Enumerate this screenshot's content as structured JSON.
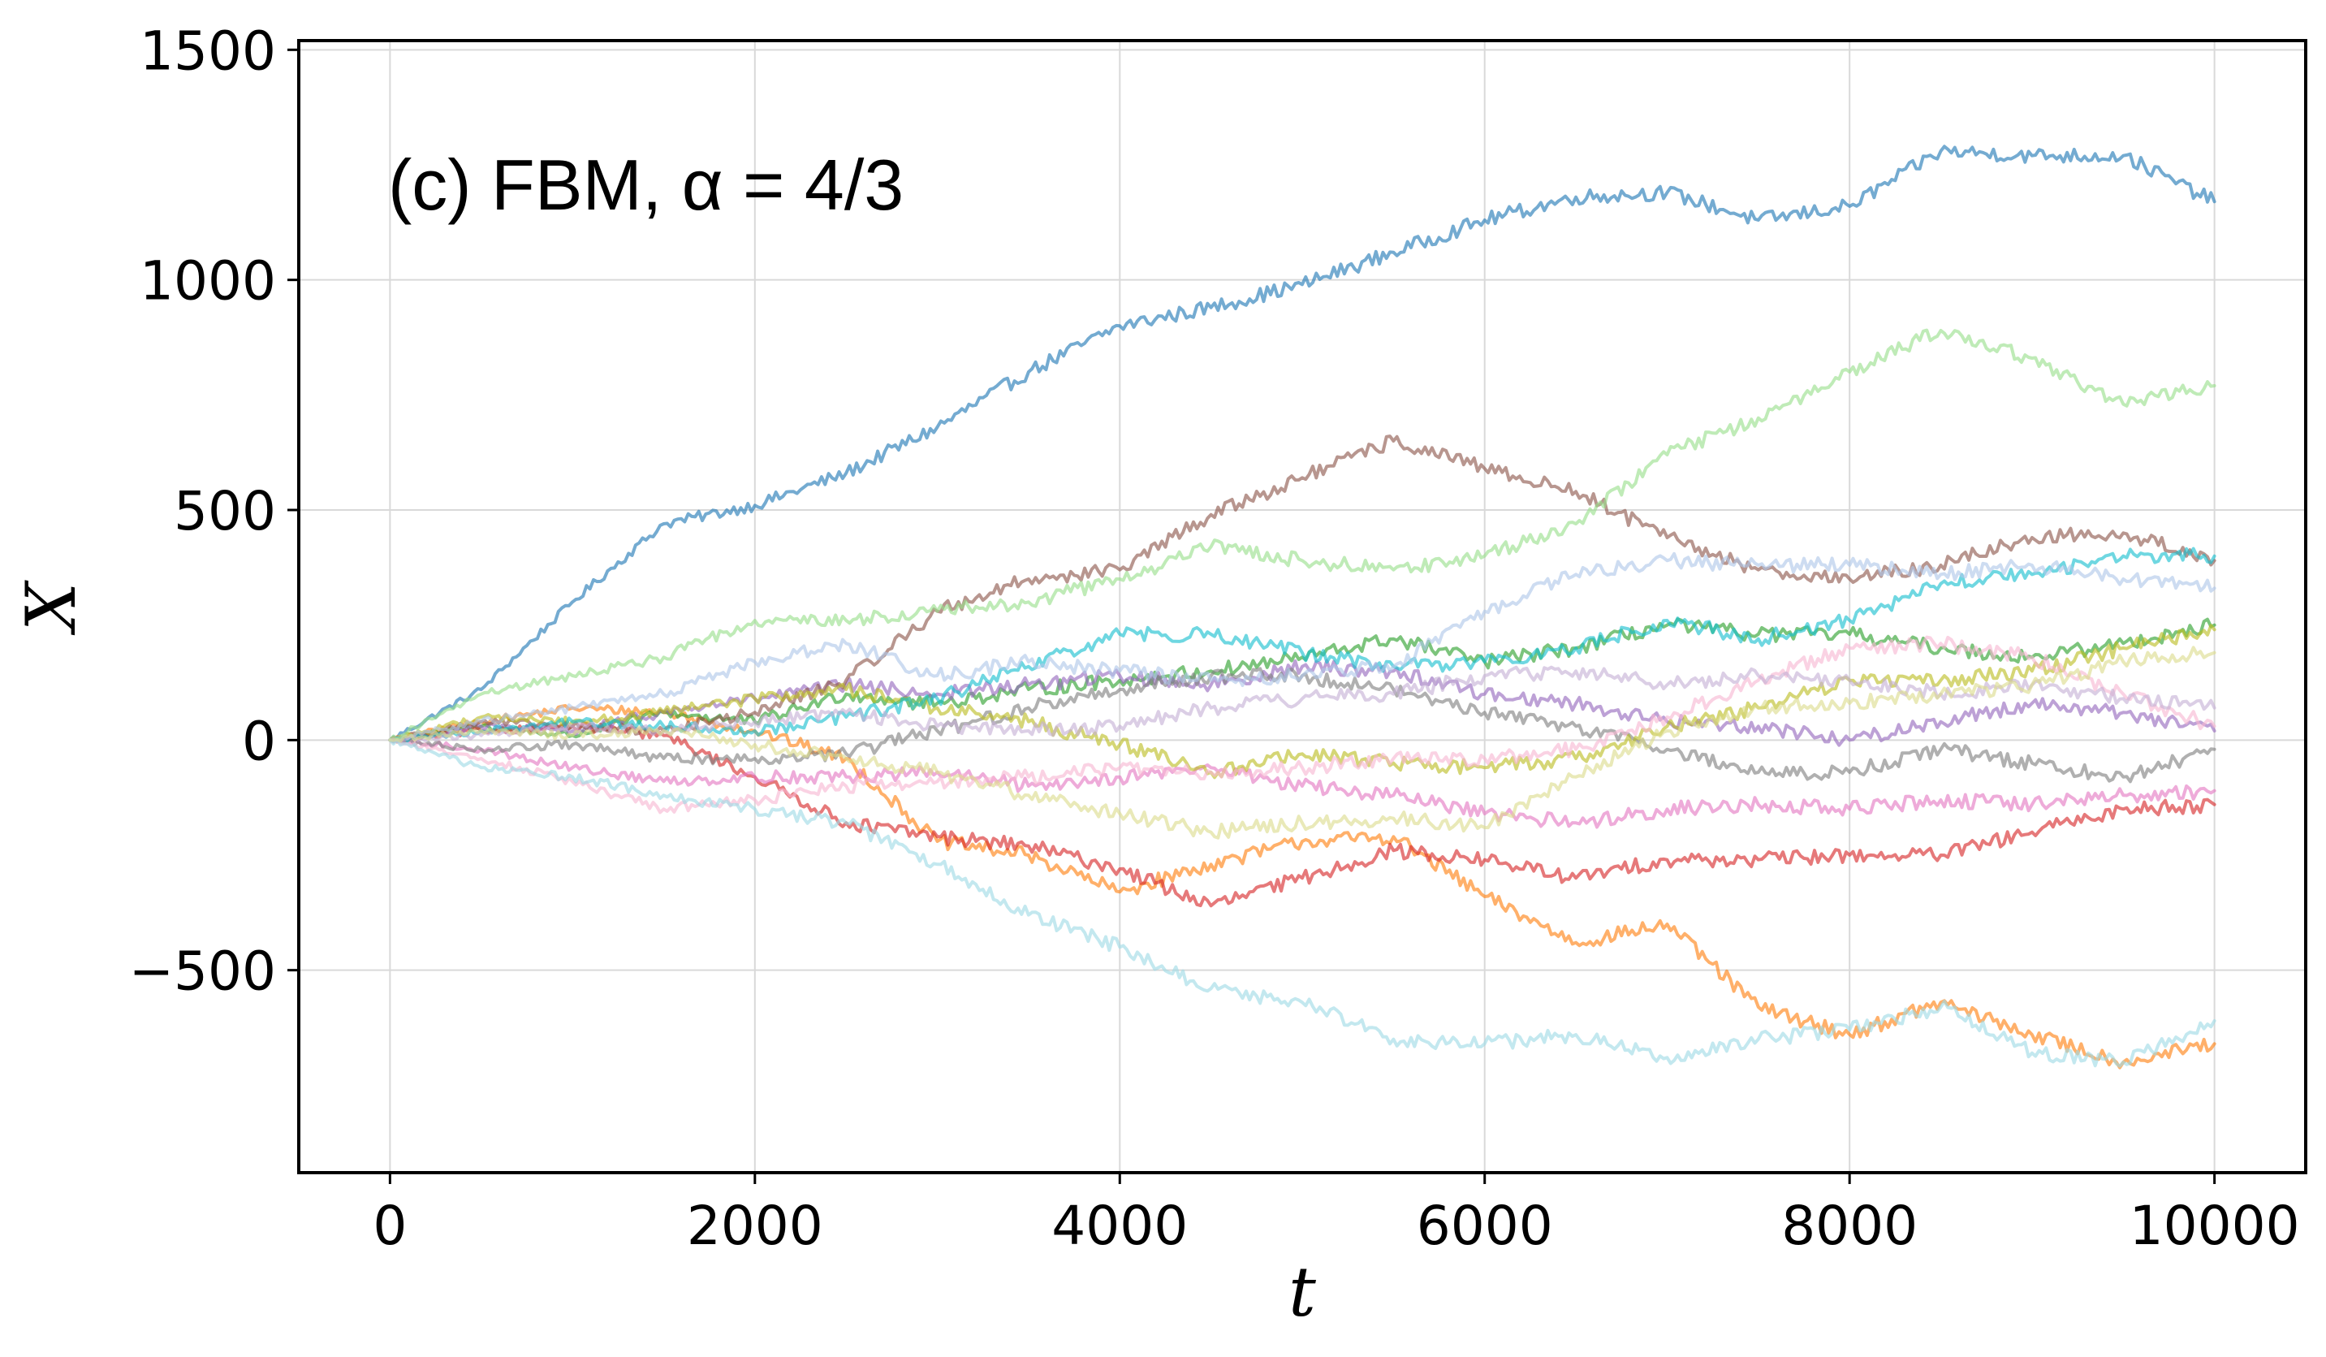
{
  "chart_data": {
    "type": "line",
    "annotation": "(c) FBM, α = 4/3",
    "xlabel": "t",
    "ylabel": "X",
    "xlim": [
      -500,
      10500
    ],
    "ylim": [
      -940,
      1520
    ],
    "xticks": [
      0,
      2000,
      4000,
      6000,
      8000,
      10000
    ],
    "xtick_labels": [
      "0",
      "2000",
      "4000",
      "6000",
      "8000",
      "10000"
    ],
    "yticks": [
      -500,
      0,
      500,
      1000,
      1500
    ],
    "ytick_labels": [
      "−500",
      "0",
      "500",
      "1000",
      "1500"
    ],
    "grid": true,
    "legend": "none",
    "x": [
      0,
      500,
      1000,
      1500,
      2000,
      2500,
      3000,
      3500,
      4000,
      4500,
      5000,
      5500,
      6000,
      6500,
      7000,
      7500,
      8000,
      8500,
      9000,
      9500,
      10000
    ],
    "series": [
      {
        "color": "#1f77b4",
        "values": [
          0,
          110,
          300,
          470,
          510,
          580,
          680,
          800,
          900,
          940,
          990,
          1060,
          1130,
          1180,
          1190,
          1130,
          1160,
          1280,
          1270,
          1270,
          1170
        ]
      },
      {
        "color": "#ff7f0e",
        "values": [
          0,
          40,
          70,
          60,
          20,
          -40,
          -220,
          -250,
          -330,
          -270,
          -220,
          -210,
          -340,
          -440,
          -400,
          -580,
          -640,
          -570,
          -640,
          -700,
          -660
        ]
      },
      {
        "color": "#2ca02c",
        "values": [
          0,
          30,
          10,
          60,
          40,
          100,
          80,
          110,
          130,
          150,
          180,
          220,
          170,
          200,
          250,
          230,
          230,
          200,
          180,
          210,
          250
        ]
      },
      {
        "color": "#d62728",
        "values": [
          0,
          20,
          30,
          10,
          -80,
          -180,
          -210,
          -230,
          -280,
          -360,
          -300,
          -240,
          -260,
          -300,
          -260,
          -260,
          -250,
          -250,
          -200,
          -150,
          -140
        ]
      },
      {
        "color": "#9467bd",
        "values": [
          0,
          30,
          20,
          60,
          90,
          120,
          100,
          120,
          140,
          120,
          160,
          150,
          100,
          80,
          40,
          30,
          0,
          40,
          80,
          60,
          20
        ]
      },
      {
        "color": "#8c564b",
        "values": [
          0,
          40,
          30,
          20,
          60,
          130,
          280,
          350,
          370,
          490,
          570,
          650,
          590,
          540,
          440,
          370,
          350,
          380,
          440,
          450,
          390
        ]
      },
      {
        "color": "#e377c2",
        "values": [
          0,
          -20,
          -60,
          -90,
          -80,
          -80,
          -70,
          -100,
          -80,
          -60,
          -100,
          -120,
          -160,
          -180,
          -150,
          -140,
          -150,
          -130,
          -140,
          -120,
          -110
        ]
      },
      {
        "color": "#7f7f7f",
        "values": [
          0,
          -20,
          -10,
          -40,
          -40,
          -30,
          20,
          70,
          110,
          140,
          140,
          110,
          60,
          30,
          -20,
          -70,
          -70,
          -20,
          -50,
          -80,
          -20
        ]
      },
      {
        "color": "#bcbd22",
        "values": [
          0,
          50,
          40,
          60,
          90,
          110,
          70,
          40,
          -10,
          -70,
          -30,
          -50,
          -60,
          -40,
          30,
          70,
          130,
          130,
          150,
          200,
          240
        ]
      },
      {
        "color": "#17becf",
        "values": [
          0,
          20,
          40,
          30,
          20,
          50,
          90,
          160,
          230,
          230,
          190,
          160,
          170,
          200,
          260,
          220,
          260,
          340,
          360,
          400,
          400
        ]
      },
      {
        "color": "#aec7e8",
        "values": [
          0,
          40,
          70,
          100,
          170,
          210,
          140,
          170,
          150,
          130,
          140,
          160,
          280,
          360,
          390,
          380,
          380,
          360,
          380,
          350,
          330
        ]
      },
      {
        "color": "#98df8a",
        "values": [
          0,
          100,
          140,
          180,
          260,
          260,
          280,
          300,
          350,
          420,
          390,
          370,
          400,
          470,
          620,
          700,
          800,
          890,
          830,
          730,
          770
        ]
      },
      {
        "color": "#f7b6d2",
        "values": [
          0,
          -40,
          -90,
          -150,
          -130,
          -100,
          -90,
          -80,
          -60,
          -70,
          -60,
          -40,
          -40,
          -20,
          50,
          130,
          200,
          210,
          180,
          100,
          30
        ]
      },
      {
        "color": "#c5b0d5",
        "values": [
          0,
          10,
          30,
          20,
          40,
          60,
          30,
          20,
          30,
          70,
          90,
          100,
          140,
          150,
          120,
          140,
          130,
          100,
          120,
          90,
          70
        ]
      },
      {
        "color": "#9edae5",
        "values": [
          0,
          -60,
          -80,
          -120,
          -150,
          -180,
          -270,
          -380,
          -450,
          -540,
          -570,
          -650,
          -660,
          -640,
          -690,
          -650,
          -630,
          -580,
          -680,
          -700,
          -610
        ]
      },
      {
        "color": "#dbdb8d",
        "values": [
          0,
          20,
          10,
          20,
          -10,
          -40,
          -70,
          -120,
          -160,
          -200,
          -180,
          -170,
          -190,
          -80,
          20,
          70,
          80,
          100,
          120,
          170,
          190
        ]
      }
    ]
  }
}
